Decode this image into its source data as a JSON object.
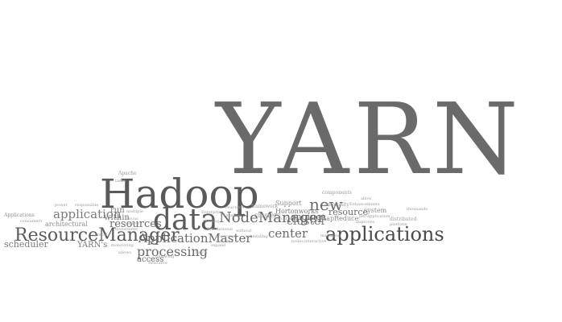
{
  "palette": {
    "background": "#ffffff",
    "dark": "#4a4a4a",
    "mid": "#6a6a6a",
    "light": "#9c9c9c"
  },
  "words": {
    "yarn": "YARN",
    "hadoop": "Hadoop",
    "data": "data",
    "applications": "applications",
    "resourcemanager": "ResourceManager",
    "applicationmaster": "ApplicationMaster",
    "nodemanager": "NodeManager",
    "processing": "processing",
    "application": "application",
    "resources": "resources",
    "new": "new",
    "center": "center",
    "cluster": "cluster",
    "engines": "engines",
    "resource": "resource",
    "scheduler": "scheduler",
    "within": "within",
    "run": "run",
    "access": "access",
    "yarns": "YARN's",
    "hortonworks": "Hortonworks",
    "mapreduce": "MapReduce",
    "support": "Support",
    "clusters": "clusters",
    "architectural": "architectural",
    "applications_small": "Applications",
    "apache": "Apache",
    "system": "system",
    "distributed": "distributed",
    "framework": "framework",
    "community": "community",
    "components": "components",
    "multiple": "multiple",
    "central": "central",
    "foundational": "foundational",
    "monitoring": "monitoring",
    "responsible": "responsible",
    "tasks": "tasks",
    "thousands": "thousands",
    "enhancements": "Enhancements",
    "scheduling": "scheduling",
    "batch": "batch",
    "server": "Server",
    "running": "running",
    "real_time": "real-time",
    "allows": "allows",
    "interactive": "interactive",
    "managing": "managing",
    "expand": "expand",
    "without": "without",
    "consumers": "consumers",
    "following": "following",
    "machine": "machine",
    "nodes": "nodes",
    "resource_cap": "Resource",
    "deliver": "deliver",
    "investment": "investment",
    "per_application": "per-application",
    "platform": "platform",
    "improves": "improves",
    "enterprise": "Enterprise",
    "power": "power",
    "focus": "Focus",
    "timeline": "Timeline",
    "allow": "allow",
    "ecosystem": "ecosystem"
  }
}
